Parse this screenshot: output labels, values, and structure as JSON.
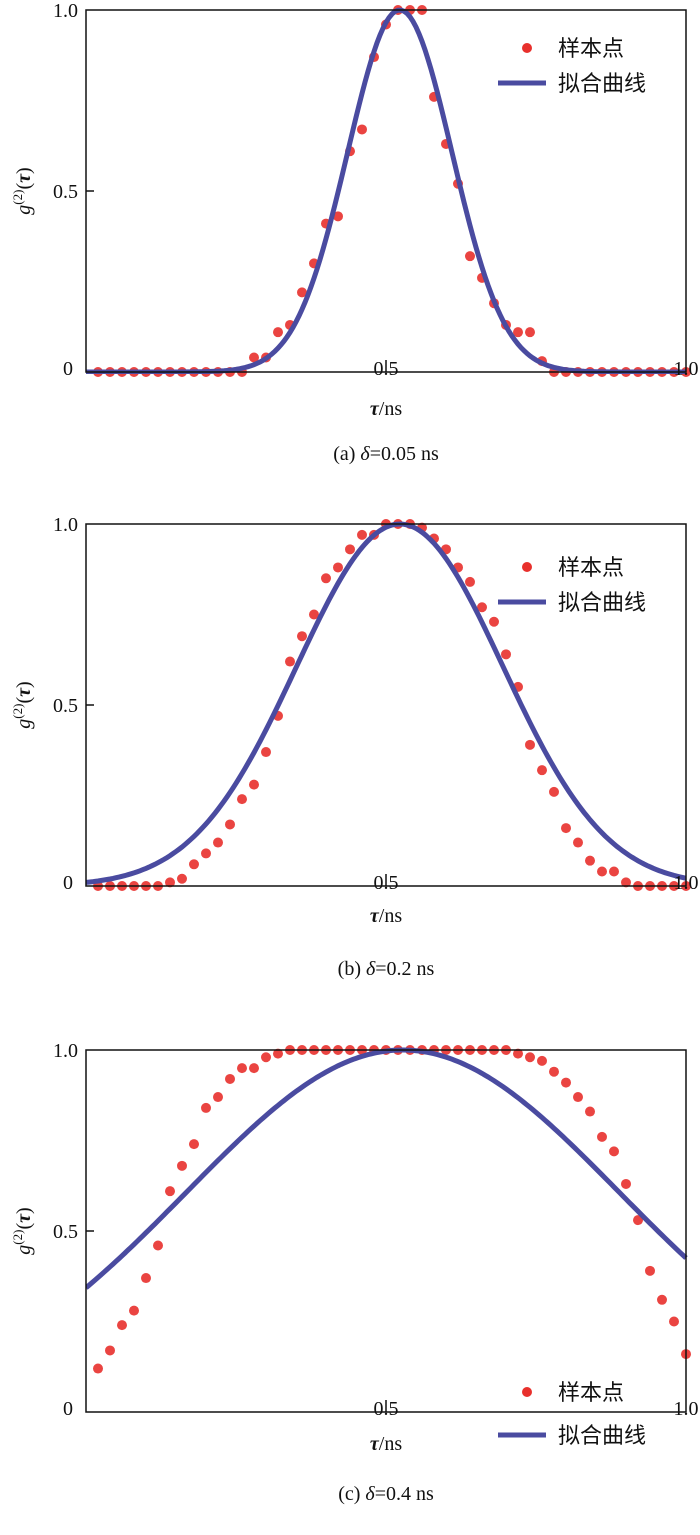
{
  "chart_data": [
    {
      "type": "scatter",
      "caption": "(a) δ=0.05 ns",
      "caption_prefix": "(a) ",
      "caption_symbol": "δ",
      "caption_value": "=0.05 ns",
      "xlabel_symbol": "τ",
      "xlabel_unit": "/ns",
      "ylabel": "g(2)(τ)",
      "xlim": [
        0,
        1.0
      ],
      "ylim": [
        0,
        1.0
      ],
      "x_ticks": [
        "0",
        "0.5",
        "1.0"
      ],
      "y_ticks": [
        "0.5",
        "1.0"
      ],
      "grid": false,
      "legend_position": "top-right",
      "series": [
        {
          "name": "样本点",
          "kind": "points",
          "color": "#e8302c",
          "x": [
            0.02,
            0.04,
            0.06,
            0.08,
            0.1,
            0.12,
            0.14,
            0.16,
            0.18,
            0.2,
            0.22,
            0.24,
            0.26,
            0.28,
            0.3,
            0.32,
            0.34,
            0.36,
            0.38,
            0.4,
            0.42,
            0.44,
            0.46,
            0.48,
            0.5,
            0.52,
            0.54,
            0.56,
            0.58,
            0.6,
            0.62,
            0.64,
            0.66,
            0.68,
            0.7,
            0.72,
            0.74,
            0.76,
            0.78,
            0.8,
            0.82,
            0.84,
            0.86,
            0.88,
            0.9,
            0.92,
            0.94,
            0.96,
            0.98,
            1.0
          ],
          "y": [
            0,
            0,
            0,
            0,
            0,
            0,
            0,
            0,
            0,
            0,
            0,
            0,
            0,
            0.04,
            0.04,
            0.11,
            0.13,
            0.22,
            0.3,
            0.41,
            0.43,
            0.61,
            0.67,
            0.87,
            0.96,
            1.0,
            1.0,
            1.0,
            0.76,
            0.63,
            0.52,
            0.32,
            0.26,
            0.19,
            0.13,
            0.11,
            0.11,
            0.03,
            0,
            0,
            0,
            0,
            0,
            0,
            0,
            0,
            0,
            0,
            0,
            0
          ]
        },
        {
          "name": "拟合曲线",
          "kind": "gaussian-fit",
          "color": "#4a4ba0",
          "center": 0.523,
          "sigma": 0.087,
          "amplitude": 1.0
        }
      ]
    },
    {
      "type": "scatter",
      "caption": "(b) δ=0.2 ns",
      "caption_prefix": "(b) ",
      "caption_symbol": "δ",
      "caption_value": "=0.2 ns",
      "xlabel_symbol": "τ",
      "xlabel_unit": "/ns",
      "ylabel": "g(2)(τ)",
      "xlim": [
        0,
        1.0
      ],
      "ylim": [
        0,
        1.0
      ],
      "x_ticks": [
        "0",
        "0.5",
        "1.0"
      ],
      "y_ticks": [
        "0.5",
        "1.0"
      ],
      "grid": false,
      "legend_position": "top-right",
      "series": [
        {
          "name": "样本点",
          "kind": "points",
          "color": "#e8302c",
          "x": [
            0.02,
            0.04,
            0.06,
            0.08,
            0.1,
            0.12,
            0.14,
            0.16,
            0.18,
            0.2,
            0.22,
            0.24,
            0.26,
            0.28,
            0.3,
            0.32,
            0.34,
            0.36,
            0.38,
            0.4,
            0.42,
            0.44,
            0.46,
            0.48,
            0.5,
            0.52,
            0.54,
            0.56,
            0.58,
            0.6,
            0.62,
            0.64,
            0.66,
            0.68,
            0.7,
            0.72,
            0.74,
            0.76,
            0.78,
            0.8,
            0.82,
            0.84,
            0.86,
            0.88,
            0.9,
            0.92,
            0.94,
            0.96,
            0.98,
            1.0
          ],
          "y": [
            0,
            0,
            0,
            0,
            0,
            0,
            0.01,
            0.02,
            0.06,
            0.09,
            0.12,
            0.17,
            0.24,
            0.28,
            0.37,
            0.47,
            0.62,
            0.69,
            0.75,
            0.85,
            0.88,
            0.93,
            0.97,
            0.97,
            1.0,
            1.0,
            1.0,
            0.99,
            0.96,
            0.93,
            0.88,
            0.84,
            0.77,
            0.73,
            0.64,
            0.55,
            0.39,
            0.32,
            0.26,
            0.16,
            0.12,
            0.07,
            0.04,
            0.04,
            0.01,
            0,
            0,
            0,
            0,
            0
          ]
        },
        {
          "name": "拟合曲线",
          "kind": "gaussian-fit",
          "color": "#4a4ba0",
          "center": 0.523,
          "sigma": 0.172,
          "amplitude": 1.0
        }
      ]
    },
    {
      "type": "scatter",
      "caption": "(c) δ=0.4 ns",
      "caption_prefix": "(c) ",
      "caption_symbol": "δ",
      "caption_value": "=0.4 ns",
      "xlabel_symbol": "τ",
      "xlabel_unit": "/ns",
      "ylabel": "g(2)(τ)",
      "xlim": [
        0,
        1.0
      ],
      "ylim": [
        0,
        1.0
      ],
      "x_ticks": [
        "0",
        "0.5",
        "1.0"
      ],
      "y_ticks": [
        "0.5",
        "1.0"
      ],
      "grid": false,
      "legend_position": "bottom-right",
      "series": [
        {
          "name": "样本点",
          "kind": "points",
          "color": "#e8302c",
          "x": [
            0.02,
            0.04,
            0.06,
            0.08,
            0.1,
            0.12,
            0.14,
            0.16,
            0.18,
            0.2,
            0.22,
            0.24,
            0.26,
            0.28,
            0.3,
            0.32,
            0.34,
            0.36,
            0.38,
            0.4,
            0.42,
            0.44,
            0.46,
            0.48,
            0.5,
            0.52,
            0.54,
            0.56,
            0.58,
            0.6,
            0.62,
            0.64,
            0.66,
            0.68,
            0.7,
            0.72,
            0.74,
            0.76,
            0.78,
            0.8,
            0.82,
            0.84,
            0.86,
            0.88,
            0.9,
            0.92,
            0.94,
            0.96,
            0.98,
            1.0
          ],
          "y": [
            0.12,
            0.17,
            0.24,
            0.28,
            0.37,
            0.46,
            0.61,
            0.68,
            0.74,
            0.84,
            0.87,
            0.92,
            0.95,
            0.95,
            0.98,
            0.99,
            1.0,
            1.0,
            1.0,
            1.0,
            1.0,
            1.0,
            1.0,
            1.0,
            1.0,
            1.0,
            1.0,
            1.0,
            1.0,
            1.0,
            1.0,
            1.0,
            1.0,
            1.0,
            1.0,
            0.99,
            0.98,
            0.97,
            0.94,
            0.91,
            0.87,
            0.83,
            0.76,
            0.72,
            0.63,
            0.53,
            0.39,
            0.31,
            0.25,
            0.16
          ]
        },
        {
          "name": "拟合曲线",
          "kind": "gaussian-fit",
          "color": "#4a4ba0",
          "center": 0.528,
          "sigma": 0.361,
          "amplitude": 1.0
        }
      ]
    }
  ]
}
